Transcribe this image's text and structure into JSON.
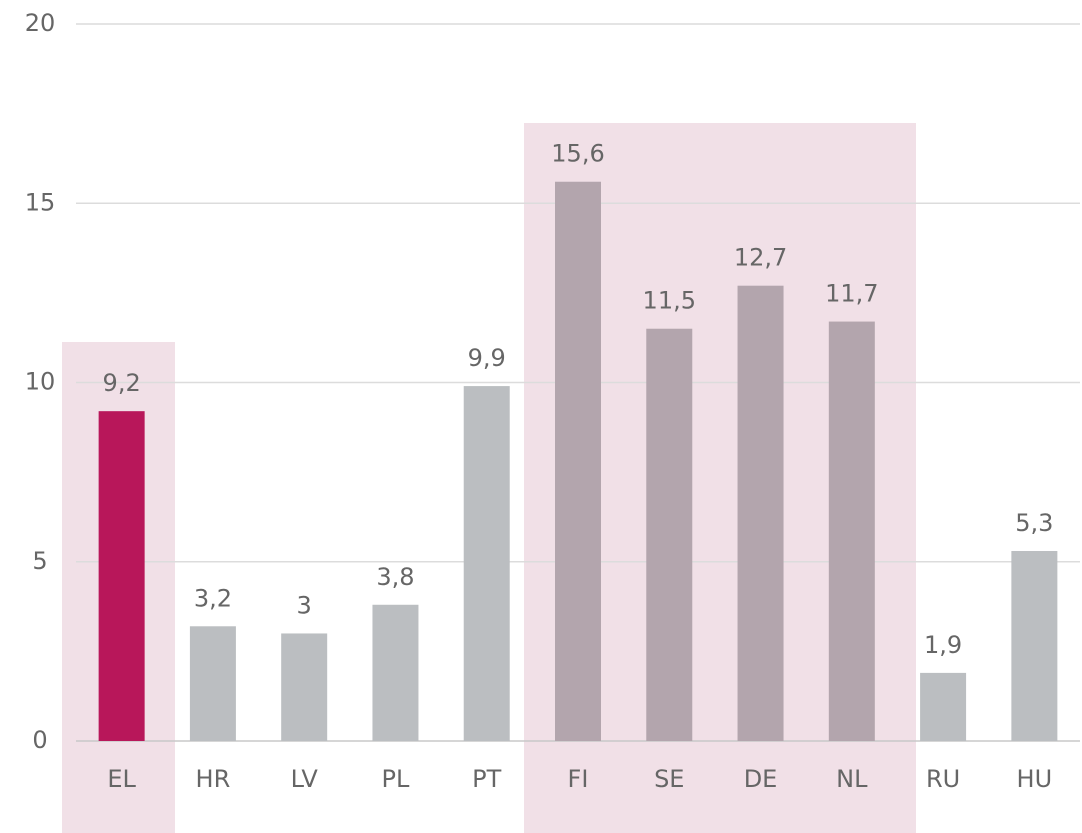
{
  "chart_data": {
    "type": "bar",
    "categories": [
      "EL",
      "HR",
      "LV",
      "PL",
      "PT",
      "FI",
      "SE",
      "DE",
      "NL",
      "RU",
      "HU"
    ],
    "values": [
      9.2,
      3.2,
      3,
      3.8,
      9.9,
      15.6,
      11.5,
      12.7,
      11.7,
      1.9,
      5.3
    ],
    "value_labels": [
      "9,2",
      "3,2",
      "3",
      "3,8",
      "9,9",
      "15,6",
      "11,5",
      "12,7",
      "11,7",
      "1,9",
      "5,3"
    ],
    "colors": [
      "#b8175a",
      "#bbbec1",
      "#bbbec1",
      "#bbbec1",
      "#bbbec1",
      "#b3a5ad",
      "#b3a5ad",
      "#b3a5ad",
      "#b3a5ad",
      "#bbbec1",
      "#bbbec1"
    ],
    "ylim": [
      0,
      20
    ],
    "yticks": [
      0,
      5,
      10,
      15,
      20
    ],
    "grid": true
  }
}
